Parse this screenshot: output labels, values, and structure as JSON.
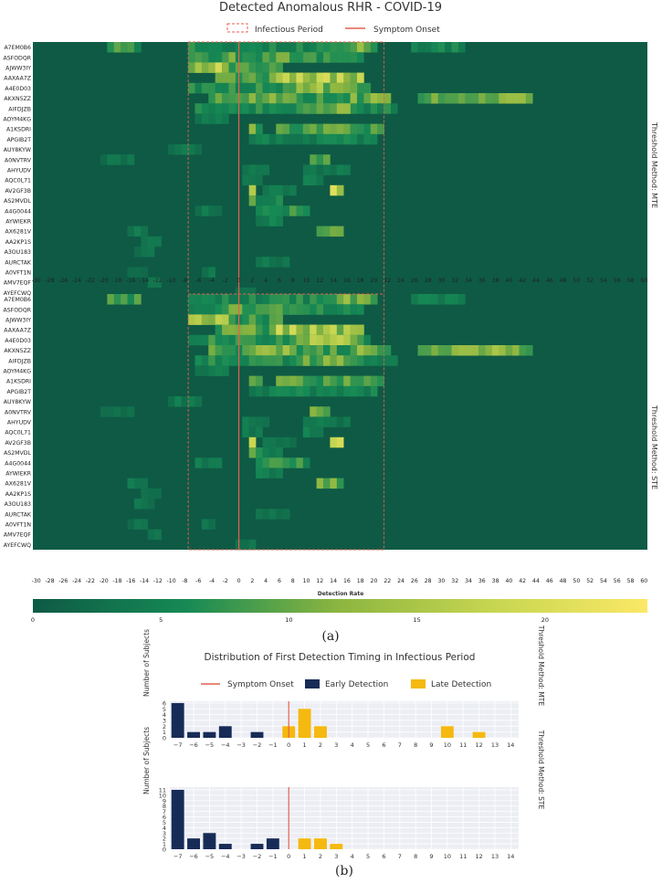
{
  "chart_data": [
    {
      "type": "heatmap",
      "title": "Detected Anomalous RHR - COVID-19",
      "legend": [
        "Infectious Period",
        "Symptom Onset"
      ],
      "panels": [
        "Threshold Method: MTE",
        "Threshold Method: STE"
      ],
      "subjects": [
        "A7EM0B6",
        "ASFODQR",
        "AJWW3IY",
        "AAXAA7Z",
        "A4E0D03",
        "AKXN5ZZ",
        "AIFDJZB",
        "AOYM4KG",
        "A1KSDRI",
        "APGIB2T",
        "AUY8KYW",
        "A0NVTRV",
        "AHYUDV",
        "AQC0L71",
        "AV2GF3B",
        "AS2MVDL",
        "A4G0044",
        "AYWIEKR",
        "AX6281V",
        "AA2KP1S",
        "A3OU183",
        "AURCTAK",
        "A0VFT1N",
        "AMV7EQF",
        "AYEFCWQ"
      ],
      "x_ticks": [
        -30,
        -28,
        -26,
        -24,
        -22,
        -20,
        -18,
        -16,
        -14,
        -12,
        -10,
        -8,
        -6,
        -4,
        -2,
        0,
        2,
        4,
        6,
        8,
        10,
        12,
        14,
        16,
        18,
        20,
        22,
        24,
        26,
        28,
        30,
        32,
        34,
        36,
        38,
        40,
        42,
        44,
        46,
        48,
        50,
        52,
        54,
        56,
        58,
        60
      ],
      "xlim": [
        -30,
        60
      ],
      "infectious_period": [
        -7.5,
        21.5
      ],
      "symptom_onset": 0,
      "colorbar": {
        "label": "Detection Rate",
        "ticks": [
          0,
          5,
          10,
          15,
          20
        ],
        "range": [
          0,
          24
        ]
      },
      "colors": [
        "#0e5a45",
        "#168a55",
        "#8db640",
        "#c7d651",
        "#fbe866"
      ],
      "caption": "(a)"
    },
    {
      "type": "bar",
      "title": "Distribution of First Detection Timing in Infectious Period",
      "legend": [
        "Symptom Onset",
        "Early Detection",
        "Late Detection"
      ],
      "colors": {
        "early": "#172b57",
        "late": "#f5b90f",
        "onset": "#e4604f",
        "grid_bg": "#eceef4"
      },
      "categories": [
        -7,
        -6,
        -5,
        -4,
        -3,
        -2,
        -1,
        0,
        1,
        2,
        3,
        4,
        5,
        6,
        7,
        8,
        9,
        10,
        11,
        12,
        13,
        14
      ],
      "panels": [
        {
          "label": "Threshold Method: MTE",
          "ylabel": "Number of Subjects",
          "ylim": [
            0,
            6.3
          ],
          "yticks": [
            0,
            1,
            2,
            3,
            4,
            5,
            6
          ],
          "series": [
            {
              "name": "Early Detection",
              "values": [
                6,
                1,
                1,
                2,
                0,
                1,
                0,
                0,
                0,
                0,
                0,
                0,
                0,
                0,
                0,
                0,
                0,
                0,
                0,
                0,
                0,
                0
              ]
            },
            {
              "name": "Late Detection",
              "values": [
                0,
                0,
                0,
                0,
                0,
                0,
                0,
                2,
                5,
                2,
                0,
                0,
                0,
                0,
                0,
                0,
                0,
                2,
                0,
                1,
                0,
                0
              ]
            }
          ]
        },
        {
          "label": "Threshold Method: STE",
          "ylabel": "Number of Subjects",
          "ylim": [
            0,
            11.5
          ],
          "yticks": [
            0,
            1,
            2,
            3,
            4,
            5,
            6,
            7,
            8,
            9,
            10,
            11
          ],
          "series": [
            {
              "name": "Early Detection",
              "values": [
                11,
                2,
                3,
                1,
                0,
                1,
                2,
                0,
                0,
                0,
                0,
                0,
                0,
                0,
                0,
                0,
                0,
                0,
                0,
                0,
                0,
                0
              ]
            },
            {
              "name": "Late Detection",
              "values": [
                0,
                0,
                0,
                0,
                0,
                0,
                0,
                0,
                2,
                2,
                1,
                0,
                0,
                0,
                0,
                0,
                0,
                0,
                0,
                0,
                0,
                0
              ]
            }
          ]
        }
      ],
      "caption": "(b)"
    }
  ]
}
